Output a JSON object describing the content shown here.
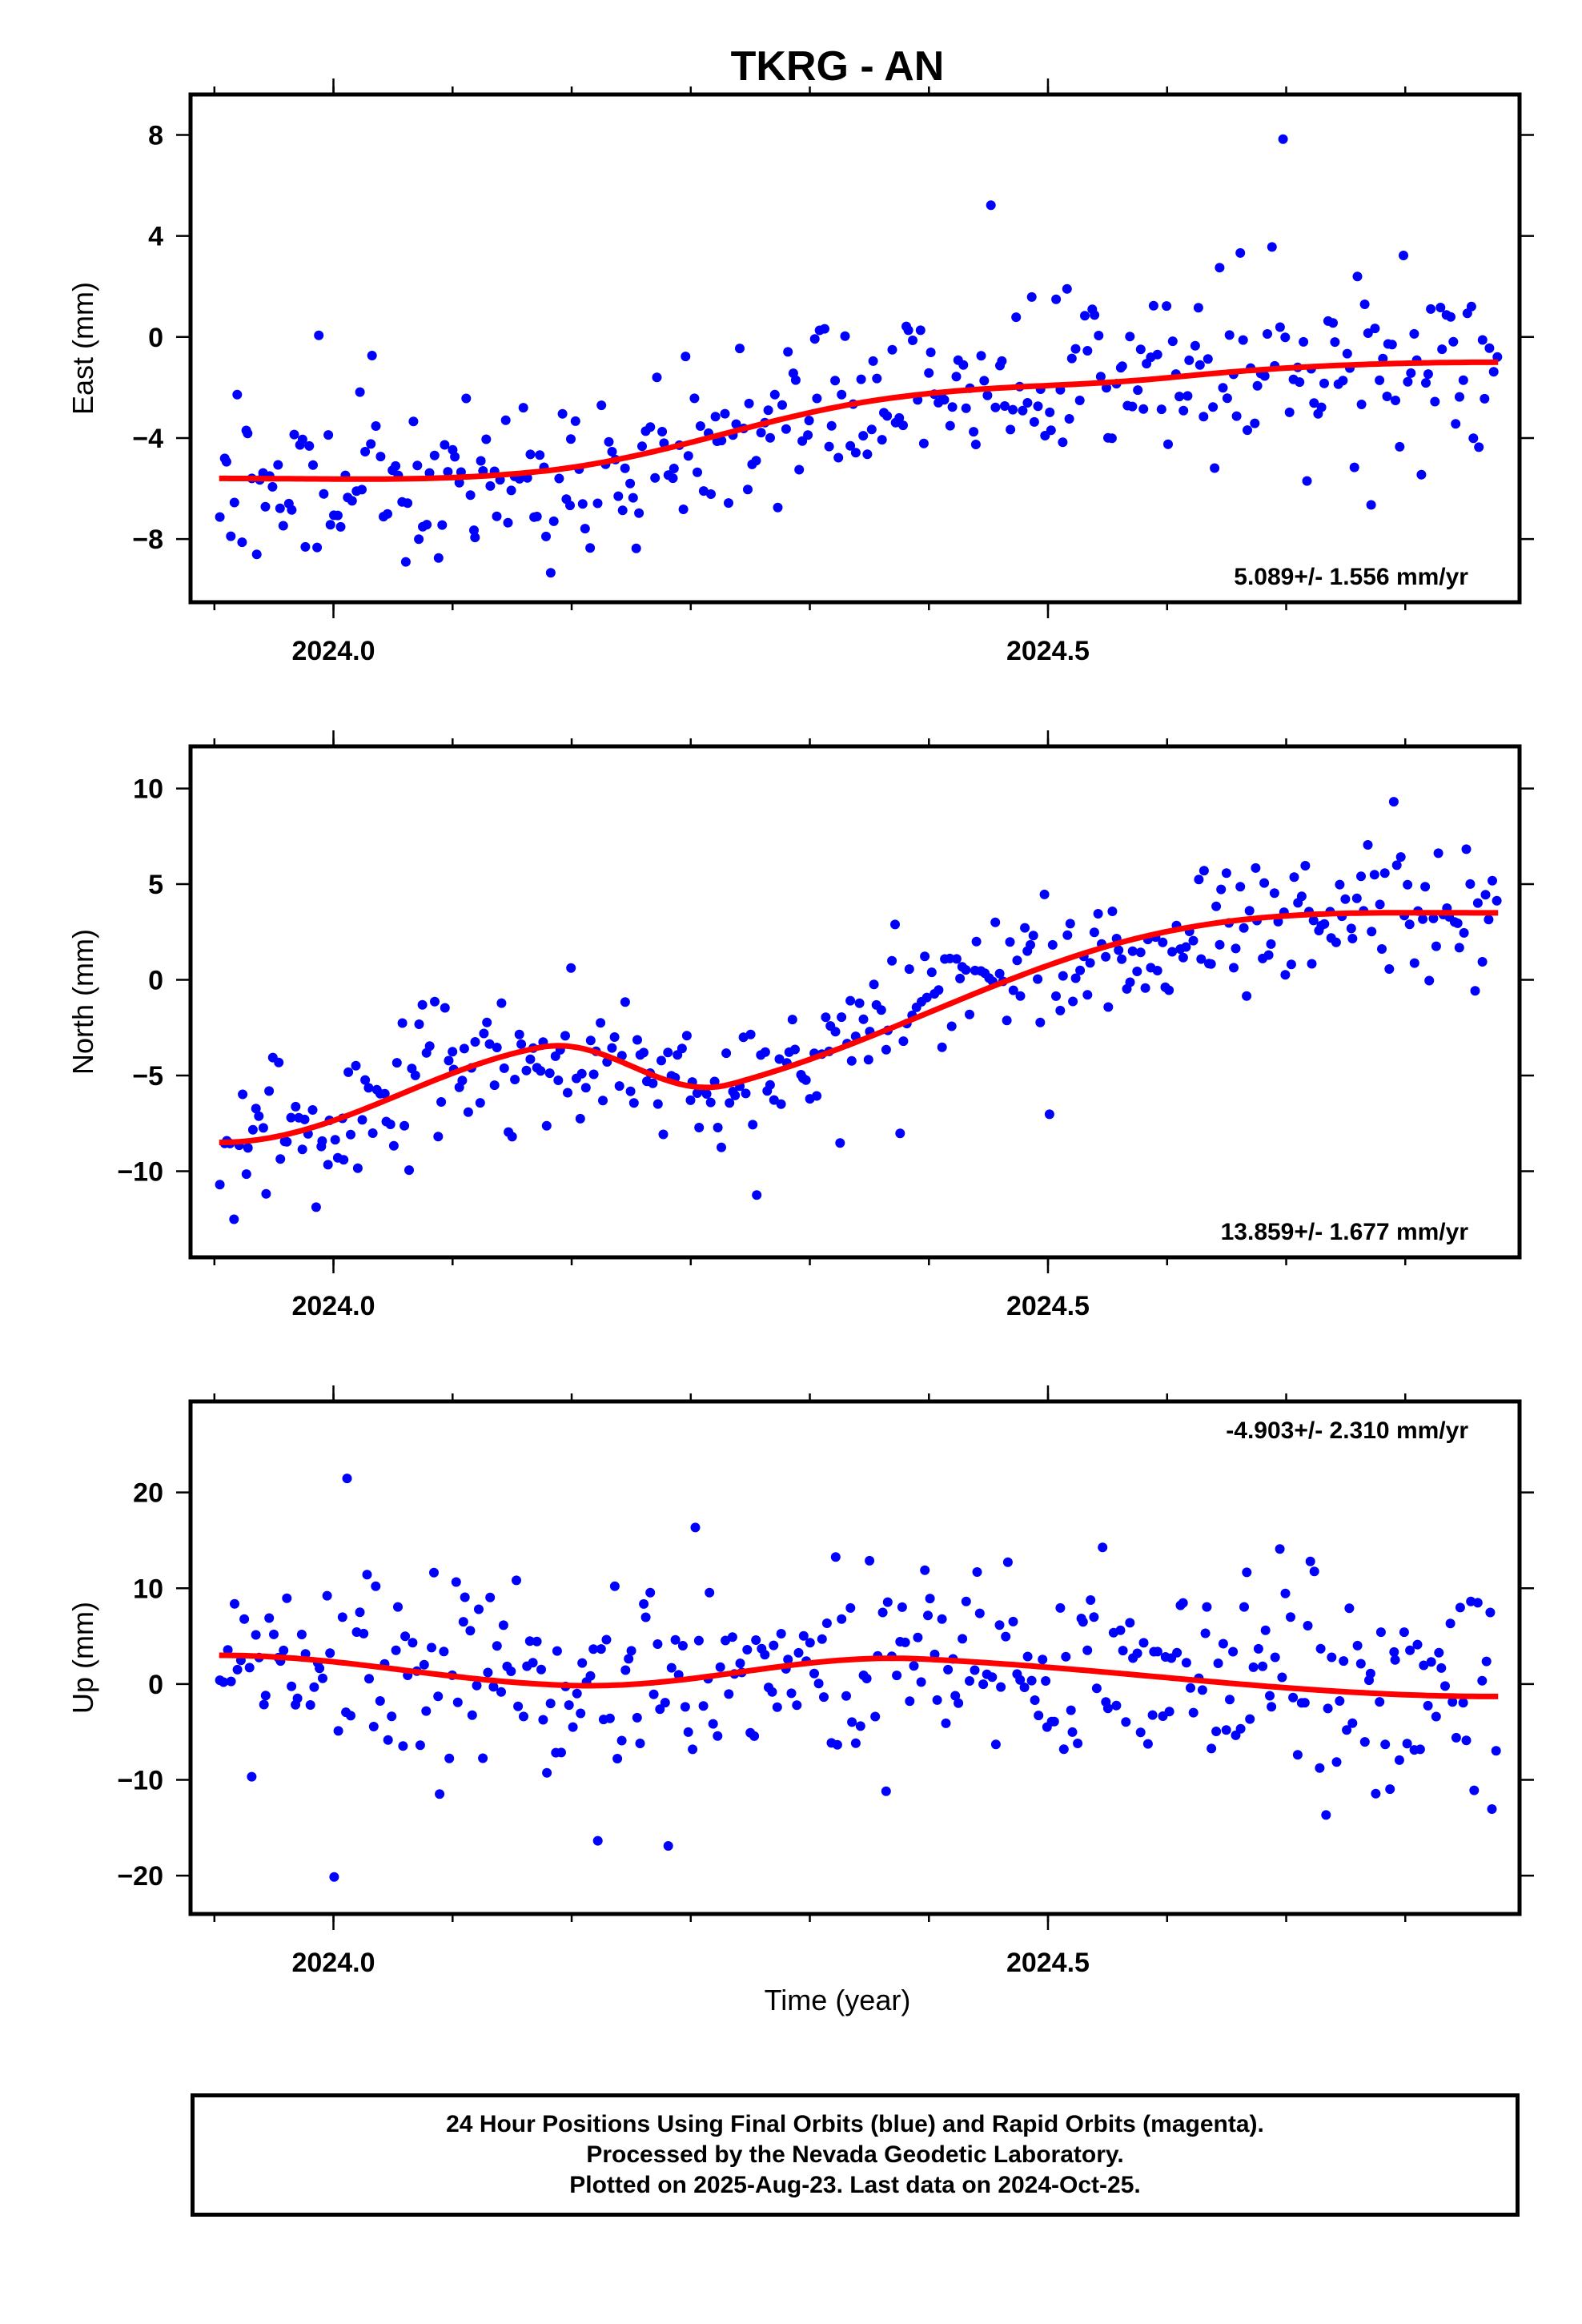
{
  "title": "TKRG - AN",
  "x_axis_label": "Time (year)",
  "footer": {
    "line1": "24 Hour Positions Using Final Orbits (blue) and Rapid Orbits (magenta).",
    "line2": "Processed by the Nevada Geodetic Laboratory.",
    "line3": "Plotted on 2025-Aug-23. Last data on 2024-Oct-25."
  },
  "colors": {
    "points": "#0000ff",
    "fit": "#ff0000",
    "frame": "#000000"
  },
  "chart_data": [
    {
      "type": "scatter",
      "ylabel": "East (mm)",
      "xlim": [
        2023.9,
        2024.83
      ],
      "ylim": [
        -10.5,
        9.6
      ],
      "xticks": [
        2024.0,
        2024.5
      ],
      "yticks": [
        -8,
        -4,
        0,
        4,
        8
      ],
      "ytick_labels": [
        "−8",
        "−4",
        "0",
        "4",
        "8"
      ],
      "rate_label": "5.089+/- 1.556 mm/yr",
      "rate_position": "bottom-right",
      "trend": {
        "start": -5.6,
        "end": -1.0,
        "center": 0.5,
        "curve": [
          [
            0.0,
            0
          ],
          [
            0.25,
            -0.4
          ],
          [
            0.52,
            0.7
          ],
          [
            0.75,
            0.1
          ],
          [
            1.0,
            0
          ]
        ],
        "amp": 1.0
      },
      "seed": 11,
      "noise": 1.6
    },
    {
      "type": "scatter",
      "ylabel": "North (mm)",
      "xlim": [
        2023.9,
        2024.83
      ],
      "ylim": [
        -14.5,
        12.2
      ],
      "xticks": [
        2024.0,
        2024.5
      ],
      "yticks": [
        -10,
        -5,
        0,
        5,
        10
      ],
      "ytick_labels": [
        "−10",
        "−5",
        "0",
        "5",
        "10"
      ],
      "rate_label": "13.859+/- 1.677 mm/yr",
      "rate_position": "bottom-right",
      "trend": {
        "start": -8.5,
        "end": 3.5,
        "center": 0.5,
        "curve": [
          [
            0.0,
            0
          ],
          [
            0.25,
            3.2
          ],
          [
            0.4,
            -1.1
          ],
          [
            0.74,
            0.9
          ],
          [
            1.0,
            0
          ]
        ],
        "amp": 1.0
      },
      "seed": 23,
      "noise": 1.7
    },
    {
      "type": "scatter",
      "ylabel": "Up (mm)",
      "xlim": [
        2023.9,
        2024.83
      ],
      "ylim": [
        -24.0,
        29.5
      ],
      "xticks": [
        2024.0,
        2024.5
      ],
      "yticks": [
        -20,
        -10,
        0,
        10,
        20
      ],
      "ytick_labels": [
        "−20",
        "−10",
        "0",
        "10",
        "20"
      ],
      "rate_label": "-4.903+/- 2.310 mm/yr",
      "rate_position": "top-right",
      "trend": {
        "start": 3.0,
        "end": -1.3,
        "center": 0.5,
        "curve": [
          [
            0.0,
            0
          ],
          [
            0.27,
            -2.4
          ],
          [
            0.55,
            2.1
          ],
          [
            1.0,
            0
          ]
        ],
        "amp": 1.0
      },
      "seed": 37,
      "noise": 5.2
    }
  ]
}
